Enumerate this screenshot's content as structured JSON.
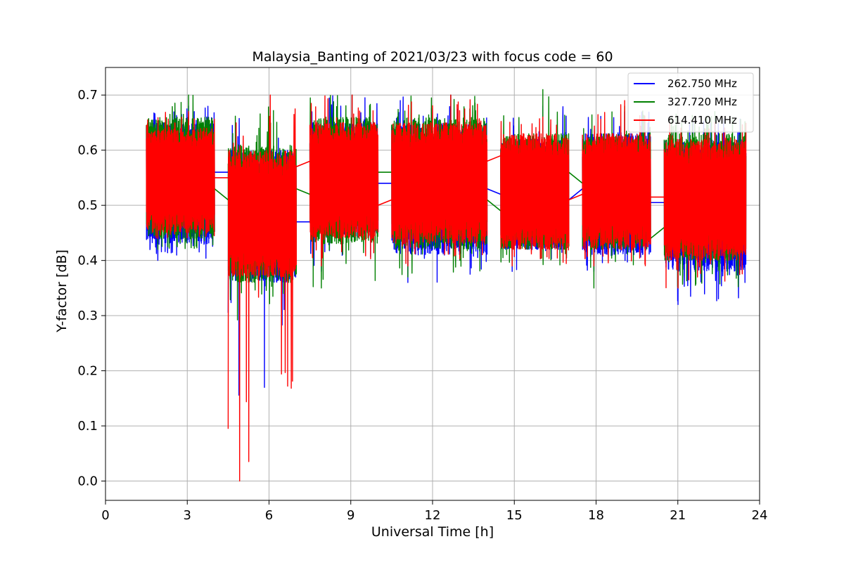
{
  "chart_data": {
    "type": "line",
    "title": "Malaysia_Banting of 2021/03/23 with focus code = 60",
    "xlabel": "Universal Time [h]",
    "ylabel": "Y-factor [dB]",
    "xlim": [
      0,
      24
    ],
    "ylim": [
      -0.035,
      0.75
    ],
    "xticks": [
      0,
      3,
      6,
      9,
      12,
      15,
      18,
      21,
      24
    ],
    "yticks": [
      0.0,
      0.1,
      0.2,
      0.3,
      0.4,
      0.5,
      0.6,
      0.7
    ],
    "ytick_labels": [
      "0.0",
      "0.1",
      "0.2",
      "0.3",
      "0.4",
      "0.5",
      "0.6",
      "0.7"
    ],
    "grid": true,
    "legend_position": "top-right",
    "series": [
      {
        "name": "262.750 MHz",
        "color": "#0000ff",
        "segments": [
          {
            "x": [
              1.5,
              4.0
            ],
            "low": 0.43,
            "high": 0.65,
            "min": 0.4,
            "max": 0.68
          },
          {
            "x": [
              4.5,
              7.0
            ],
            "low": 0.36,
            "high": 0.6,
            "min": 0.13,
            "max": 0.66
          },
          {
            "x": [
              7.5,
              10.0
            ],
            "low": 0.44,
            "high": 0.65,
            "min": 0.38,
            "max": 0.7
          },
          {
            "x": [
              10.5,
              14.0
            ],
            "low": 0.41,
            "high": 0.65,
            "min": 0.36,
            "max": 0.7
          },
          {
            "x": [
              14.5,
              17.0
            ],
            "low": 0.42,
            "high": 0.62,
            "min": 0.38,
            "max": 0.68
          },
          {
            "x": [
              17.5,
              20.0
            ],
            "low": 0.41,
            "high": 0.63,
            "min": 0.38,
            "max": 0.67
          },
          {
            "x": [
              20.5,
              23.5
            ],
            "low": 0.38,
            "high": 0.62,
            "min": 0.32,
            "max": 0.66
          }
        ],
        "gap_lines": [
          [
            4.0,
            0.56,
            4.5,
            0.56
          ],
          [
            7.0,
            0.47,
            7.5,
            0.47
          ],
          [
            10.0,
            0.54,
            10.5,
            0.54
          ],
          [
            14.0,
            0.53,
            14.5,
            0.52
          ],
          [
            17.0,
            0.51,
            17.5,
            0.53
          ],
          [
            20.0,
            0.505,
            20.5,
            0.505
          ]
        ]
      },
      {
        "name": "327.720 MHz",
        "color": "#008000",
        "segments": [
          {
            "x": [
              1.5,
              4.0
            ],
            "low": 0.44,
            "high": 0.66,
            "min": 0.42,
            "max": 0.7
          },
          {
            "x": [
              4.5,
              7.0
            ],
            "low": 0.36,
            "high": 0.61,
            "min": 0.29,
            "max": 0.68
          },
          {
            "x": [
              7.5,
              10.0
            ],
            "low": 0.43,
            "high": 0.66,
            "min": 0.35,
            "max": 0.7
          },
          {
            "x": [
              10.5,
              14.0
            ],
            "low": 0.42,
            "high": 0.66,
            "min": 0.37,
            "max": 0.7
          },
          {
            "x": [
              14.5,
              17.0
            ],
            "low": 0.42,
            "high": 0.63,
            "min": 0.39,
            "max": 0.71
          },
          {
            "x": [
              17.5,
              20.0
            ],
            "low": 0.42,
            "high": 0.63,
            "min": 0.35,
            "max": 0.68
          },
          {
            "x": [
              20.5,
              23.5
            ],
            "low": 0.4,
            "high": 0.63,
            "min": 0.35,
            "max": 0.67
          }
        ],
        "gap_lines": [
          [
            4.0,
            0.53,
            4.5,
            0.51
          ],
          [
            7.0,
            0.53,
            7.5,
            0.52
          ],
          [
            10.0,
            0.56,
            10.5,
            0.56
          ],
          [
            14.0,
            0.51,
            14.5,
            0.49
          ],
          [
            17.0,
            0.56,
            17.5,
            0.54
          ],
          [
            20.0,
            0.44,
            20.5,
            0.46
          ]
        ]
      },
      {
        "name": "614.410 MHz",
        "color": "#ff0000",
        "segments": [
          {
            "x": [
              1.5,
              4.0
            ],
            "low": 0.45,
            "high": 0.64,
            "min": 0.44,
            "max": 0.67
          },
          {
            "x": [
              4.5,
              7.0
            ],
            "low": 0.37,
            "high": 0.6,
            "min": 0.0,
            "max": 0.7
          },
          {
            "x": [
              7.5,
              10.0
            ],
            "low": 0.44,
            "high": 0.65,
            "min": 0.39,
            "max": 0.7
          },
          {
            "x": [
              10.5,
              14.0
            ],
            "low": 0.43,
            "high": 0.65,
            "min": 0.39,
            "max": 0.7
          },
          {
            "x": [
              14.5,
              17.0
            ],
            "low": 0.42,
            "high": 0.63,
            "min": 0.39,
            "max": 0.66
          },
          {
            "x": [
              17.5,
              20.0
            ],
            "low": 0.42,
            "high": 0.63,
            "min": 0.39,
            "max": 0.69
          },
          {
            "x": [
              20.5,
              23.5
            ],
            "low": 0.4,
            "high": 0.62,
            "min": 0.35,
            "max": 0.65
          }
        ],
        "gap_lines": [
          [
            4.0,
            0.55,
            4.5,
            0.55
          ],
          [
            7.0,
            0.57,
            7.5,
            0.58
          ],
          [
            10.0,
            0.5,
            10.5,
            0.51
          ],
          [
            14.0,
            0.58,
            14.5,
            0.59
          ],
          [
            17.0,
            0.51,
            17.5,
            0.52
          ],
          [
            20.0,
            0.515,
            20.5,
            0.515
          ]
        ]
      }
    ]
  }
}
